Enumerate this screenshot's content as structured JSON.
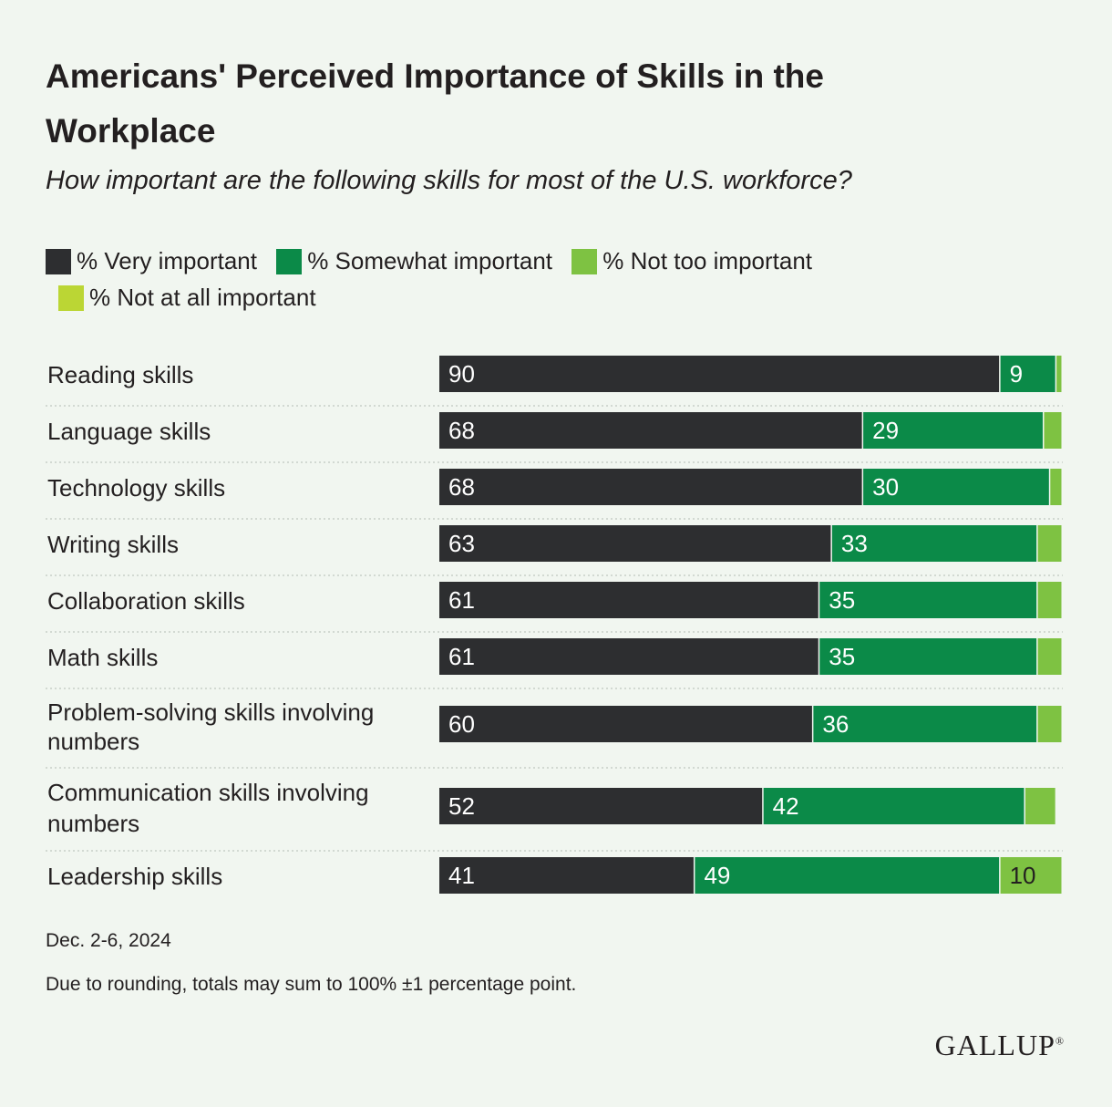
{
  "title": "Americans' Perceived Importance of Skills in the Workplace",
  "subtitle": "How important are the following skills for most of the U.S. workforce?",
  "colors": {
    "very": "#2d2e30",
    "somewhat": "#0b8a48",
    "not_too": "#7ec242",
    "not_at_all": "#bbd634",
    "label_dark": "#231f20",
    "divider": "#c8cfc8"
  },
  "chart_data": {
    "type": "bar",
    "orientation": "horizontal-stacked",
    "legend_position": "top",
    "series": [
      {
        "name": "% Very important",
        "key": "very",
        "values": [
          90,
          68,
          68,
          63,
          61,
          61,
          60,
          52,
          41
        ]
      },
      {
        "name": "% Somewhat important",
        "key": "somewhat",
        "values": [
          9,
          29,
          30,
          33,
          35,
          35,
          36,
          42,
          49
        ]
      },
      {
        "name": "% Not too important",
        "key": "not_too",
        "values": [
          1,
          3,
          2,
          4,
          4,
          4,
          4,
          5,
          10
        ]
      },
      {
        "name": "% Not at all important",
        "key": "not_at_all",
        "values": [
          0,
          0,
          0,
          0,
          0,
          0,
          0,
          0,
          0
        ]
      }
    ],
    "categories": [
      [
        "Reading skills"
      ],
      [
        "Language skills"
      ],
      [
        "Technology skills"
      ],
      [
        "Writing skills"
      ],
      [
        "Collaboration skills"
      ],
      [
        "Math skills"
      ],
      [
        "Problem-solving skills involving",
        "numbers"
      ],
      [
        "Communication skills involving",
        "numbers"
      ],
      [
        "Leadership skills"
      ]
    ],
    "value_labels": [
      [
        "90",
        "9",
        "",
        ""
      ],
      [
        "68",
        "29",
        "",
        ""
      ],
      [
        "68",
        "30",
        "",
        ""
      ],
      [
        "63",
        "33",
        "",
        ""
      ],
      [
        "61",
        "35",
        "",
        ""
      ],
      [
        "61",
        "35",
        "",
        ""
      ],
      [
        "60",
        "36",
        "",
        ""
      ],
      [
        "52",
        "42",
        "",
        ""
      ],
      [
        "41",
        "49",
        "10",
        ""
      ]
    ],
    "xlim": [
      0,
      100
    ]
  },
  "footer": {
    "date": "Dec. 2-6, 2024",
    "note": "Due to rounding, totals may sum to 100% ±1 percentage point.",
    "brand": "GALLUP"
  }
}
